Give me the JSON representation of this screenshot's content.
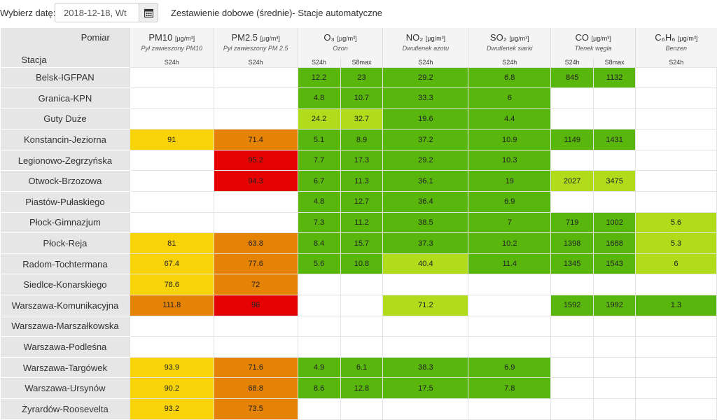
{
  "topbar": {
    "date_label": "Wybierz datę:",
    "date_value": "2018-12-18, Wt",
    "title": "Zestawienie dobowe (średnie)- Stacje automatyczne"
  },
  "header": {
    "pomiar": "Pomiar",
    "stacja": "Stacja",
    "columns": [
      {
        "name": "PM10",
        "unit": "[µg/m³]",
        "desc": "Pył zawieszony PM10",
        "subs": [
          "S24h"
        ]
      },
      {
        "name": "PM2.5",
        "unit": "[µg/m³]",
        "desc": "Pył zawieszony PM 2.5",
        "subs": [
          "S24h"
        ]
      },
      {
        "name": "O₃",
        "unit": "[µg/m³]",
        "desc": "Ozon",
        "subs": [
          "S24h",
          "S8max"
        ]
      },
      {
        "name": "NO₂",
        "unit": "[µg/m³]",
        "desc": "Dwutlenek azotu",
        "subs": [
          "S24h"
        ]
      },
      {
        "name": "SO₂",
        "unit": "[µg/m³]",
        "desc": "Dwutlenek siarki",
        "subs": [
          "S24h"
        ]
      },
      {
        "name": "CO",
        "unit": "[µg/m³]",
        "desc": "Tlenek węgla",
        "subs": [
          "S24h",
          "S8max"
        ]
      },
      {
        "name": "C₆H₆",
        "unit": "[µg/m³]",
        "desc": "Benzen",
        "subs": [
          "S24h"
        ]
      }
    ]
  },
  "colors": {
    "g": "#59b60d",
    "l": "#b0dc1c",
    "y": "#f8d30a",
    "o": "#e48305",
    "r": "#e40202"
  },
  "rows": [
    {
      "station": "Belsk-IGFPAN",
      "cells": [
        [
          "",
          ""
        ],
        [
          "",
          ""
        ],
        [
          "12.2",
          "g"
        ],
        [
          "23",
          "g"
        ],
        [
          "29.2",
          "g"
        ],
        [
          "6.8",
          "g"
        ],
        [
          "845",
          "g"
        ],
        [
          "1132",
          "g"
        ],
        [
          "",
          ""
        ]
      ]
    },
    {
      "station": "Granica-KPN",
      "cells": [
        [
          "",
          ""
        ],
        [
          "",
          ""
        ],
        [
          "4.8",
          "g"
        ],
        [
          "10.7",
          "g"
        ],
        [
          "33.3",
          "g"
        ],
        [
          "6",
          "g"
        ],
        [
          "",
          ""
        ],
        [
          "",
          ""
        ],
        [
          "",
          ""
        ]
      ]
    },
    {
      "station": "Guty Duże",
      "cells": [
        [
          "",
          ""
        ],
        [
          "",
          ""
        ],
        [
          "24.2",
          "l"
        ],
        [
          "32.7",
          "l"
        ],
        [
          "19.6",
          "g"
        ],
        [
          "4.4",
          "g"
        ],
        [
          "",
          ""
        ],
        [
          "",
          ""
        ],
        [
          "",
          ""
        ]
      ]
    },
    {
      "station": "Konstancin-Jeziorna",
      "cells": [
        [
          "91",
          "y"
        ],
        [
          "71.4",
          "o"
        ],
        [
          "5.1",
          "g"
        ],
        [
          "8.9",
          "g"
        ],
        [
          "37.2",
          "g"
        ],
        [
          "10.9",
          "g"
        ],
        [
          "1149",
          "g"
        ],
        [
          "1431",
          "g"
        ],
        [
          "",
          ""
        ]
      ]
    },
    {
      "station": "Legionowo-Zegrzyńska",
      "cells": [
        [
          "",
          ""
        ],
        [
          "95.2",
          "r"
        ],
        [
          "7.7",
          "g"
        ],
        [
          "17.3",
          "g"
        ],
        [
          "29.2",
          "g"
        ],
        [
          "10.3",
          "g"
        ],
        [
          "",
          ""
        ],
        [
          "",
          ""
        ],
        [
          "",
          ""
        ]
      ]
    },
    {
      "station": "Otwock-Brzozowa",
      "cells": [
        [
          "",
          ""
        ],
        [
          "94.3",
          "r"
        ],
        [
          "6.7",
          "g"
        ],
        [
          "11.3",
          "g"
        ],
        [
          "36.1",
          "g"
        ],
        [
          "19",
          "g"
        ],
        [
          "2027",
          "l"
        ],
        [
          "3475",
          "l"
        ],
        [
          "",
          ""
        ]
      ]
    },
    {
      "station": "Piastów-Pułaskiego",
      "cells": [
        [
          "",
          ""
        ],
        [
          "",
          ""
        ],
        [
          "4.8",
          "g"
        ],
        [
          "12.7",
          "g"
        ],
        [
          "36.4",
          "g"
        ],
        [
          "6.9",
          "g"
        ],
        [
          "",
          ""
        ],
        [
          "",
          ""
        ],
        [
          "",
          ""
        ]
      ]
    },
    {
      "station": "Płock-Gimnazjum",
      "cells": [
        [
          "",
          ""
        ],
        [
          "",
          ""
        ],
        [
          "7.3",
          "g"
        ],
        [
          "11.2",
          "g"
        ],
        [
          "38.5",
          "g"
        ],
        [
          "7",
          "g"
        ],
        [
          "719",
          "g"
        ],
        [
          "1002",
          "g"
        ],
        [
          "5.6",
          "l"
        ]
      ]
    },
    {
      "station": "Płock-Reja",
      "cells": [
        [
          "81",
          "y"
        ],
        [
          "63.8",
          "o"
        ],
        [
          "8.4",
          "g"
        ],
        [
          "15.7",
          "g"
        ],
        [
          "37.3",
          "g"
        ],
        [
          "10.2",
          "g"
        ],
        [
          "1398",
          "g"
        ],
        [
          "1688",
          "g"
        ],
        [
          "5.3",
          "l"
        ]
      ]
    },
    {
      "station": "Radom-Tochtermana",
      "cells": [
        [
          "67.4",
          "y"
        ],
        [
          "77.6",
          "o"
        ],
        [
          "5.6",
          "g"
        ],
        [
          "10.8",
          "g"
        ],
        [
          "40.4",
          "l"
        ],
        [
          "11.4",
          "g"
        ],
        [
          "1345",
          "g"
        ],
        [
          "1543",
          "g"
        ],
        [
          "6",
          "l"
        ]
      ]
    },
    {
      "station": "Siedlce-Konarskiego",
      "cells": [
        [
          "78.6",
          "y"
        ],
        [
          "72",
          "o"
        ],
        [
          "",
          ""
        ],
        [
          "",
          ""
        ],
        [
          "",
          ""
        ],
        [
          "",
          ""
        ],
        [
          "",
          ""
        ],
        [
          "",
          ""
        ],
        [
          "",
          ""
        ]
      ]
    },
    {
      "station": "Warszawa-Komunikacyjna",
      "cells": [
        [
          "111.8",
          "o"
        ],
        [
          "96",
          "r"
        ],
        [
          "",
          ""
        ],
        [
          "",
          ""
        ],
        [
          "71.2",
          "l"
        ],
        [
          "",
          ""
        ],
        [
          "1592",
          "g"
        ],
        [
          "1992",
          "g"
        ],
        [
          "1.3",
          "g"
        ]
      ]
    },
    {
      "station": "Warszawa-Marszałkowska",
      "cells": [
        [
          "",
          ""
        ],
        [
          "",
          ""
        ],
        [
          "",
          ""
        ],
        [
          "",
          ""
        ],
        [
          "",
          ""
        ],
        [
          "",
          ""
        ],
        [
          "",
          ""
        ],
        [
          "",
          ""
        ],
        [
          "",
          ""
        ]
      ]
    },
    {
      "station": "Warszawa-Podleśna",
      "cells": [
        [
          "",
          ""
        ],
        [
          "",
          ""
        ],
        [
          "",
          ""
        ],
        [
          "",
          ""
        ],
        [
          "",
          ""
        ],
        [
          "",
          ""
        ],
        [
          "",
          ""
        ],
        [
          "",
          ""
        ],
        [
          "",
          ""
        ]
      ]
    },
    {
      "station": "Warszawa-Targówek",
      "cells": [
        [
          "93.9",
          "y"
        ],
        [
          "71.6",
          "o"
        ],
        [
          "4.9",
          "g"
        ],
        [
          "6.1",
          "g"
        ],
        [
          "38.3",
          "g"
        ],
        [
          "6.9",
          "g"
        ],
        [
          "",
          ""
        ],
        [
          "",
          ""
        ],
        [
          "",
          ""
        ]
      ]
    },
    {
      "station": "Warszawa-Ursynów",
      "cells": [
        [
          "90.2",
          "y"
        ],
        [
          "68.8",
          "o"
        ],
        [
          "8.6",
          "g"
        ],
        [
          "12.8",
          "g"
        ],
        [
          "17.5",
          "g"
        ],
        [
          "7.8",
          "g"
        ],
        [
          "",
          ""
        ],
        [
          "",
          ""
        ],
        [
          "",
          ""
        ]
      ]
    },
    {
      "station": "Żyrardów-Roosevelta",
      "cells": [
        [
          "93.2",
          "y"
        ],
        [
          "73.5",
          "o"
        ],
        [
          "",
          ""
        ],
        [
          "",
          ""
        ],
        [
          "",
          ""
        ],
        [
          "",
          ""
        ],
        [
          "",
          ""
        ],
        [
          "",
          ""
        ],
        [
          "",
          ""
        ]
      ]
    }
  ]
}
